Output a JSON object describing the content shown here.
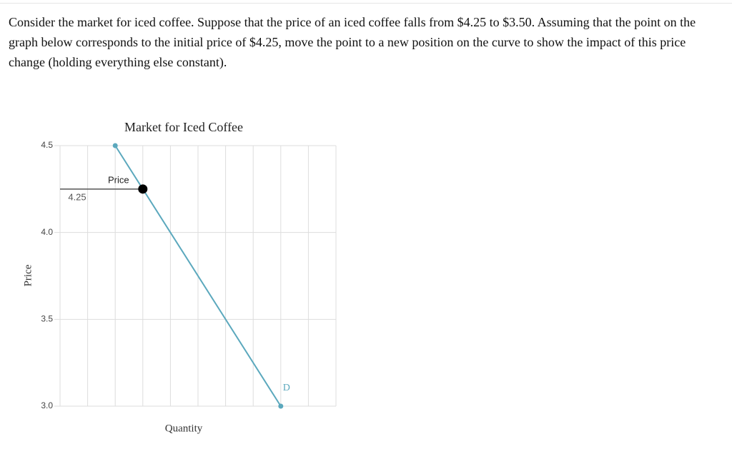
{
  "question": "Consider the market for iced coffee. Suppose that the price of an iced coffee falls from $4.25 to $3.50. Assuming that the point on the graph below corresponds to the initial price of $4.25, move the point to a new position on the curve to show the impact of this price change (holding everything else constant).",
  "chart_data": {
    "type": "line",
    "title": "Market for Iced Coffee",
    "x_label": "Quantity",
    "y_label": "Price",
    "xlim": [
      0,
      10
    ],
    "xticks": [
      0,
      1,
      2,
      3,
      4,
      5,
      6,
      7,
      8,
      9,
      10
    ],
    "ylim": [
      3.0,
      4.5
    ],
    "yticks": [
      {
        "value": 3.0,
        "label": "3.0"
      },
      {
        "value": 3.5,
        "label": "3.5"
      },
      {
        "value": 4.0,
        "label": "4.0"
      },
      {
        "value": 4.5,
        "label": "4.5"
      }
    ],
    "grid": true,
    "series": [
      {
        "name": "D",
        "color": "#5ba8bd",
        "x": [
          2,
          8
        ],
        "values": [
          4.5,
          3.0
        ]
      }
    ],
    "point": {
      "label": "Price",
      "x": 3,
      "y": 4.25,
      "value_label": "4.25",
      "color": "#000000"
    }
  }
}
